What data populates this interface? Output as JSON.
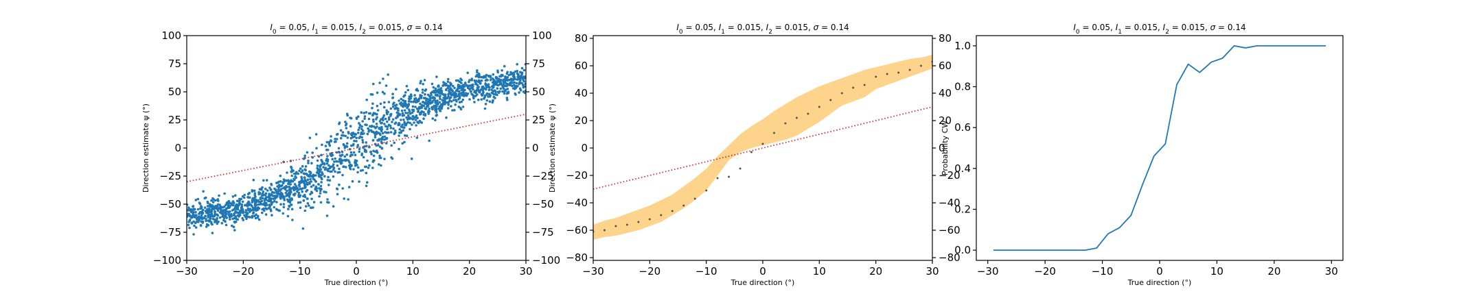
{
  "colors": {
    "scatter": "#1f77b4",
    "identity": "#d62728",
    "band": "#fdb53d",
    "mean_dot": "#555555",
    "line": "#1f77b4"
  },
  "chart_data": [
    {
      "type": "scatter",
      "title": "I_0 = 0.05, I_1 = 0.015, I_2 = 0.015, σ = 0.14",
      "title_parts": [
        {
          "t": "I",
          "i": true
        },
        {
          "t": "0",
          "sub": true
        },
        {
          "t": " = 0.05, "
        },
        {
          "t": "I",
          "i": true
        },
        {
          "t": "1",
          "sub": true
        },
        {
          "t": " = 0.015, "
        },
        {
          "t": "I",
          "i": true
        },
        {
          "t": "2",
          "sub": true
        },
        {
          "t": " = 0.015, "
        },
        {
          "t": "σ",
          "i": true
        },
        {
          "t": " = 0.14"
        }
      ],
      "xlabel": "True direction (°)",
      "ylabel": "Direction estimate ψ (°)",
      "xlim": [
        -30,
        30
      ],
      "ylim": [
        -100,
        100
      ],
      "xticks": [
        -30,
        -20,
        -10,
        0,
        10,
        20,
        30
      ],
      "yticks": [
        -100,
        -75,
        -50,
        -25,
        0,
        25,
        50,
        75,
        100
      ],
      "right_axis_ticks": true,
      "identity_line": {
        "x": [
          -30,
          30
        ],
        "y": [
          -30,
          30
        ],
        "style": "dotted"
      },
      "scatter_trend": {
        "x": [
          -30,
          -25,
          -20,
          -15,
          -10,
          -5,
          0,
          5,
          10,
          15,
          20,
          25,
          30
        ],
        "y": [
          -61,
          -58,
          -53,
          -44,
          -32,
          -16,
          2,
          20,
          35,
          45,
          52,
          57,
          62
        ]
      },
      "n_points": 2000
    },
    {
      "type": "line",
      "title": "I_0 = 0.05, I_1 = 0.015, I_2 = 0.015, σ = 0.14",
      "title_parts": [
        {
          "t": "I",
          "i": true
        },
        {
          "t": "0",
          "sub": true
        },
        {
          "t": " = 0.05, "
        },
        {
          "t": "I",
          "i": true
        },
        {
          "t": "1",
          "sub": true
        },
        {
          "t": " = 0.015, "
        },
        {
          "t": "I",
          "i": true
        },
        {
          "t": "2",
          "sub": true
        },
        {
          "t": " = 0.015, "
        },
        {
          "t": "σ",
          "i": true
        },
        {
          "t": " = 0.14"
        }
      ],
      "xlabel": "True direction (°)",
      "ylabel": "Direction estimate ψ (°)",
      "xlim": [
        -30,
        30
      ],
      "ylim": [
        -82,
        82
      ],
      "xticks": [
        -30,
        -20,
        -10,
        0,
        10,
        20,
        30
      ],
      "yticks": [
        -80,
        -60,
        -40,
        -20,
        0,
        20,
        40,
        60,
        80
      ],
      "right_axis_ticks": true,
      "identity_line": {
        "x": [
          -30,
          30
        ],
        "y": [
          -30,
          30
        ],
        "style": "dotted"
      },
      "series": [
        {
          "x": [
            -30,
            -28,
            -26,
            -24,
            -22,
            -20,
            -18,
            -16,
            -14,
            -12,
            -10,
            -8,
            -6,
            -4,
            -2,
            0,
            2,
            4,
            6,
            8,
            10,
            12,
            14,
            16,
            18,
            20,
            22,
            24,
            26,
            28,
            30
          ],
          "mean": [
            -61,
            -60,
            -57,
            -56,
            -54,
            -52,
            -49,
            -46,
            -42,
            -37,
            -31,
            -22,
            -21,
            -15,
            -3,
            3,
            11,
            18,
            22,
            25,
            30,
            35,
            40,
            44,
            46,
            52,
            54,
            55,
            57,
            60,
            63
          ],
          "lower": [
            -67,
            -65,
            -64,
            -62,
            -60,
            -57,
            -54,
            -49,
            -44,
            -38,
            -31,
            -20,
            -9,
            -3,
            0,
            2,
            4,
            6,
            9,
            14,
            19,
            25,
            31,
            34,
            37,
            43,
            46,
            49,
            52,
            55,
            58
          ],
          "upper": [
            -56,
            -53,
            -51,
            -48,
            -45,
            -42,
            -38,
            -34,
            -28,
            -22,
            -15,
            -6,
            2,
            10,
            16,
            21,
            27,
            32,
            37,
            41,
            45,
            48,
            51,
            54,
            57,
            59,
            61,
            63,
            65,
            66,
            68
          ]
        }
      ]
    },
    {
      "type": "line",
      "title": "I_0 = 0.05, I_1 = 0.015, I_2 = 0.015, σ = 0.14",
      "title_parts": [
        {
          "t": "I",
          "i": true
        },
        {
          "t": "0",
          "sub": true
        },
        {
          "t": " = 0.05, "
        },
        {
          "t": "I",
          "i": true
        },
        {
          "t": "1",
          "sub": true
        },
        {
          "t": " = 0.015, "
        },
        {
          "t": "I",
          "i": true
        },
        {
          "t": "2",
          "sub": true
        },
        {
          "t": " = 0.015, "
        },
        {
          "t": "σ",
          "i": true
        },
        {
          "t": " = 0.14"
        }
      ],
      "xlabel": "True direction (°)",
      "ylabel": "Probability CW",
      "xlim": [
        -32,
        32
      ],
      "ylim": [
        -0.05,
        1.05
      ],
      "xticks": [
        -30,
        -20,
        -10,
        0,
        10,
        20,
        30
      ],
      "yticks": [
        0.0,
        0.2,
        0.4,
        0.6,
        0.8,
        1.0
      ],
      "ytick_labels": [
        "0.0",
        "0.2",
        "0.4",
        "0.6",
        "0.8",
        "1.0"
      ],
      "right_axis_ticks": false,
      "series": [
        {
          "x": [
            -29,
            -27,
            -25,
            -23,
            -21,
            -19,
            -17,
            -15,
            -13,
            -11,
            -9,
            -7,
            -5,
            -3,
            -1,
            1,
            3,
            5,
            7,
            9,
            11,
            13,
            15,
            17,
            19,
            21,
            23,
            25,
            27,
            29
          ],
          "y": [
            0,
            0,
            0,
            0,
            0,
            0,
            0,
            0,
            0,
            0.01,
            0.08,
            0.11,
            0.17,
            0.32,
            0.46,
            0.52,
            0.81,
            0.91,
            0.87,
            0.92,
            0.94,
            1.0,
            0.99,
            1.0,
            1.0,
            1.0,
            1.0,
            1.0,
            1.0,
            1.0
          ]
        }
      ]
    }
  ]
}
